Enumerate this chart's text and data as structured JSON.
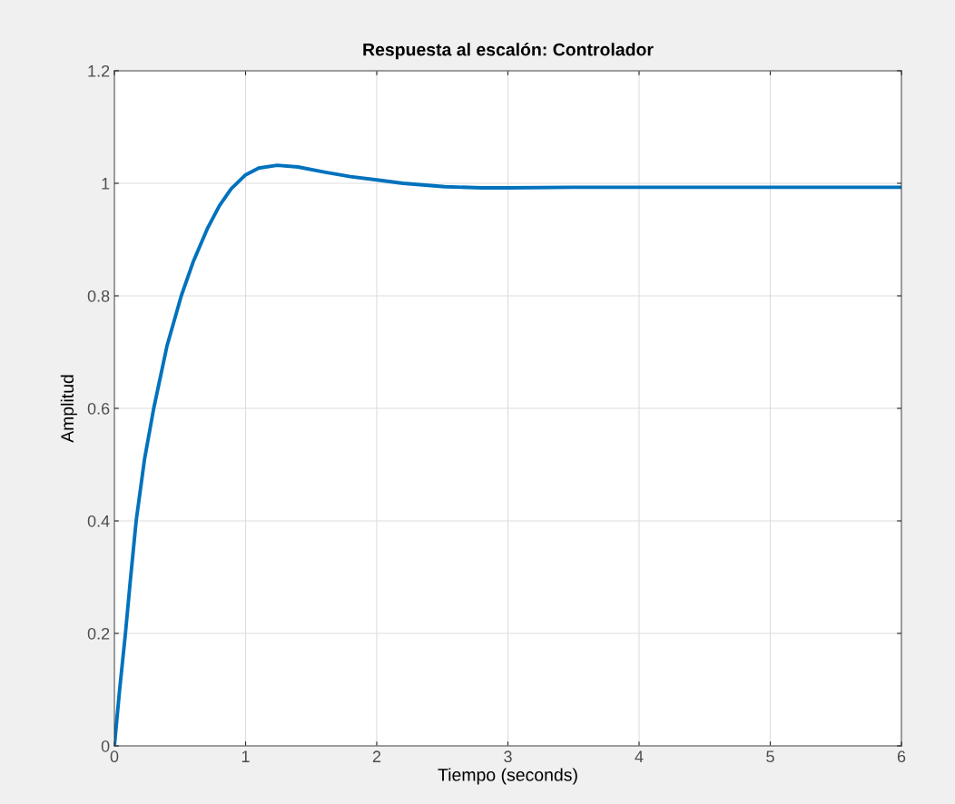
{
  "chart_data": {
    "type": "line",
    "title": "Respuesta al escalón: Controlador",
    "xlabel": "Tiempo (seconds)",
    "ylabel": "Amplitud",
    "x": [
      0,
      0.04,
      0.083,
      0.12,
      0.166,
      0.23,
      0.3,
      0.4,
      0.51,
      0.6,
      0.71,
      0.8,
      0.89,
      1.0,
      1.1,
      1.24,
      1.4,
      1.6,
      1.8,
      2.0,
      2.2,
      2.52,
      2.8,
      3.0,
      3.5,
      4.0,
      5.0,
      6.0
    ],
    "series": [
      {
        "color": "#0072bd",
        "values": [
          0,
          0.1,
          0.197,
          0.29,
          0.4,
          0.51,
          0.6,
          0.71,
          0.8,
          0.86,
          0.92,
          0.96,
          0.99,
          1.015,
          1.027,
          1.032,
          1.029,
          1.02,
          1.012,
          1.006,
          1.0,
          0.994,
          0.992,
          0.992,
          0.993,
          0.993,
          0.993,
          0.993
        ]
      }
    ],
    "xlim": [
      0,
      6
    ],
    "ylim": [
      0,
      1.2
    ],
    "xticks": [
      0,
      1,
      2,
      3,
      4,
      5,
      6
    ],
    "yticks": [
      0,
      0.2,
      0.4,
      0.6,
      0.8,
      1,
      1.2
    ],
    "grid": true,
    "line_style": "solid",
    "marker": "none"
  }
}
